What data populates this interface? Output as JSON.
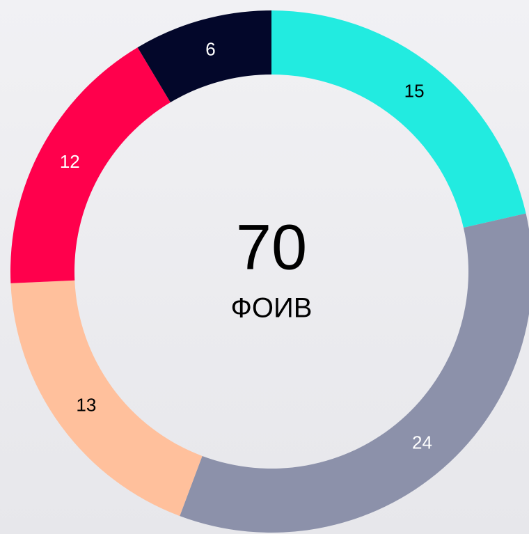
{
  "chart_data": {
    "type": "donut",
    "center_value": 70,
    "center_label": "ФОИВ",
    "categories": [
      null,
      null,
      null,
      null,
      null
    ],
    "values": [
      15,
      24,
      13,
      12,
      6
    ],
    "colors": [
      "#22ebe0",
      "#8c91aa",
      "#ffc09c",
      "#ff004c",
      "#03072a"
    ],
    "label_colors": [
      "#000000",
      "#ffffff",
      "#000000",
      "#ffffff",
      "#ffffff"
    ],
    "start_angle": 0,
    "direction": "clockwise"
  }
}
